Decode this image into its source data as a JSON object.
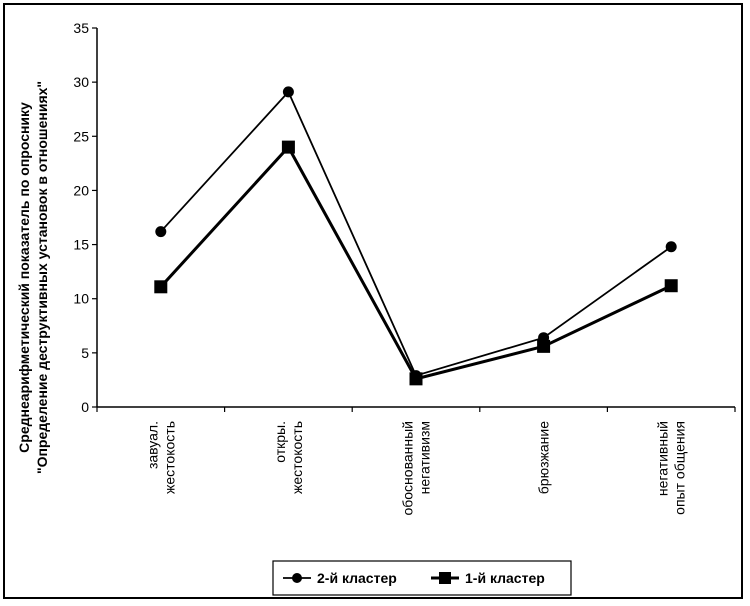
{
  "chart_data": {
    "type": "line",
    "categories": [
      [
        "завуал.",
        "жестокость"
      ],
      [
        "откры.",
        "жестокость"
      ],
      [
        "обоснованный",
        "негативизм"
      ],
      [
        "брюзжание"
      ],
      [
        "негативный",
        "опыт общения"
      ]
    ],
    "ylabel": [
      "Среднеарифметический показатель по опроснику",
      "\"Определение деструктивных установок в отношениях\""
    ],
    "ylim": [
      0,
      35
    ],
    "yticks": [
      0,
      5,
      10,
      15,
      20,
      25,
      30,
      35
    ],
    "grid": false,
    "legend_position": "bottom-center",
    "series": [
      {
        "name": "2-й кластер",
        "marker": "circle",
        "values": [
          16.2,
          29.1,
          2.9,
          6.4,
          14.8
        ]
      },
      {
        "name": "1-й кластер",
        "marker": "square",
        "values": [
          11.1,
          24.0,
          2.6,
          5.6,
          11.2
        ]
      }
    ]
  }
}
